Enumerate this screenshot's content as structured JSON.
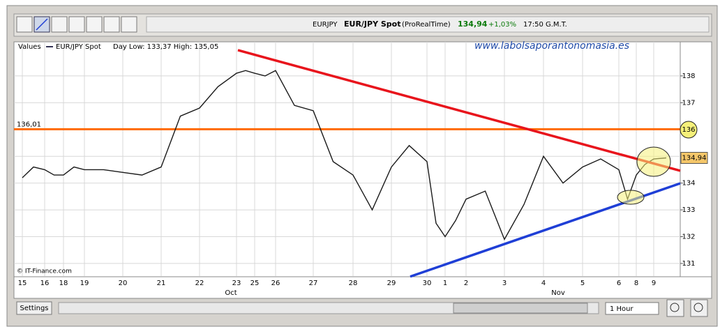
{
  "toolbar": {
    "symbol": "EURJPY",
    "name": "EUR/JPY Spot",
    "source": "(ProRealTime)",
    "price": "134,94",
    "change": "+1,03%",
    "time": "17:50 G.M.T."
  },
  "legend": {
    "values": "Values",
    "series": "EUR/JPY Spot",
    "range": "Day Low: 133,37  High: 135,05"
  },
  "watermark": "www.labolsaporantonomasia.es",
  "credit": "© IT-Finance.com",
  "controls": {
    "settings": "Settings",
    "interval": "1 Hour"
  },
  "chart_data": {
    "type": "line",
    "categories": [
      "15",
      null,
      "16",
      null,
      "18",
      null,
      "19",
      null,
      "20",
      null,
      "21",
      null,
      "22",
      null,
      "23",
      null,
      "25",
      null,
      "26",
      null,
      "27",
      null,
      "28",
      null,
      "29",
      null,
      "30",
      null,
      "1",
      null,
      "2",
      null,
      "3",
      null,
      "4",
      null,
      "5",
      null,
      "6",
      null,
      "8",
      null,
      "9",
      null
    ],
    "months": [
      "Oct",
      "Nov"
    ],
    "series": [
      {
        "name": "EUR/JPY Spot",
        "color": "#1a1a1a",
        "values": [
          134.2,
          134.6,
          134.5,
          134.3,
          134.3,
          134.6,
          134.5,
          134.5,
          134.4,
          134.3,
          134.6,
          136.5,
          136.8,
          137.6,
          138.1,
          138.2,
          138.1,
          138.0,
          138.2,
          136.9,
          136.7,
          134.8,
          134.3,
          133.0,
          134.6,
          135.4,
          134.8,
          132.5,
          132.0,
          132.6,
          133.4,
          133.7,
          131.9,
          133.2,
          135.0,
          134.0,
          134.6,
          134.9,
          134.5,
          133.4,
          134.3,
          134.7,
          134.9,
          134.94
        ]
      }
    ],
    "last_price": {
      "value": 134.94,
      "label": "134,94"
    },
    "hlines": [
      {
        "color": "#ff6a00",
        "value": 136.01,
        "label": "136,01"
      }
    ],
    "trendlines": [
      {
        "color": "#e8141c",
        "values": [
          138.96,
          134.46
        ]
      },
      {
        "color": "#1f3fd6",
        "values": [
          130.51,
          133.99
        ]
      }
    ],
    "ylim": [
      130.53,
      139.22
    ],
    "yticks": [
      131,
      132,
      133,
      134,
      135,
      136,
      137,
      138
    ],
    "grid": true
  }
}
